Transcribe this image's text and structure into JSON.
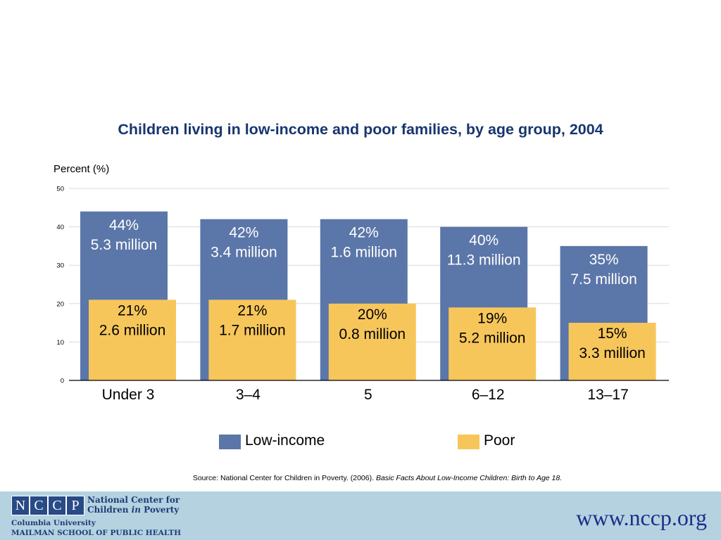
{
  "chart_data": {
    "type": "bar",
    "title": "Children living in low-income and poor families, by age group, 2004",
    "ylabel": "Percent (%)",
    "ylim": [
      0,
      50
    ],
    "yticks": [
      0,
      10,
      20,
      30,
      40,
      50
    ],
    "grid": true,
    "categories": [
      "Under 3",
      "3–4",
      "5",
      "6–12",
      "13–17"
    ],
    "series": [
      {
        "name": "Low-income",
        "color": "#5b76a8",
        "values": [
          44,
          42,
          42,
          40,
          35
        ],
        "labels": [
          [
            "44%",
            "5.3 million"
          ],
          [
            "42%",
            "3.4 million"
          ],
          [
            "42%",
            "1.6 million"
          ],
          [
            "40%",
            "11.3 million"
          ],
          [
            "35%",
            "7.5 million"
          ]
        ]
      },
      {
        "name": "Poor",
        "color": "#f7c65b",
        "values": [
          21,
          21,
          20,
          19,
          15
        ],
        "labels": [
          [
            "21%",
            "2.6 million"
          ],
          [
            "21%",
            "1.7 million"
          ],
          [
            "20%",
            "0.8 million"
          ],
          [
            "19%",
            "5.2 million"
          ],
          [
            "15%",
            "3.3 million"
          ]
        ]
      }
    ],
    "legend_position": "bottom"
  },
  "source": {
    "prefix": "Source: National Center for Children in Poverty. (2006). ",
    "italic": "Basic Facts About Low-Income Children: Birth to Age 18."
  },
  "footer": {
    "logo_letters": [
      "N",
      "C",
      "C",
      "P"
    ],
    "org_line1": "National Center for",
    "org_line2_a": "Children ",
    "org_line2_b": "in",
    "org_line2_c": " Poverty",
    "univ_line1": "Columbia University",
    "univ_line2": "MAILMAN SCHOOL OF PUBLIC HEALTH",
    "url": "www.nccp.org"
  }
}
